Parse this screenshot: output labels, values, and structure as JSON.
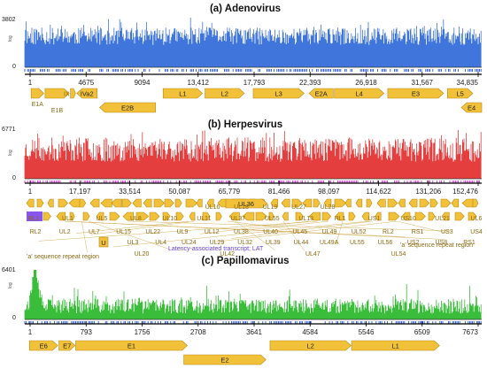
{
  "colors": {
    "adeno": "#1f5fd6",
    "herpes": "#e11d1d",
    "papilloma": "#18b218",
    "gene_fill": "#f2c13a",
    "gene_stroke": "#b88a12",
    "lat": "#8855ee"
  },
  "panels": [
    {
      "id": "adeno",
      "title": "(a) Adenovirus",
      "ymax": "3802",
      "ymin": "0",
      "ylabel": "log",
      "genome_length": 36000,
      "ticks": [
        "1",
        "4675",
        "9094",
        "13,412",
        "17,793",
        "22,393",
        "26,918",
        "31,567",
        "34,835"
      ],
      "genes": [
        {
          "name": "E1A",
          "start": 500,
          "end": 1500,
          "row": 0,
          "dir": "+",
          "label_below": true
        },
        {
          "name": "E1B",
          "start": 1600,
          "end": 3500,
          "row": 0,
          "dir": "+",
          "label_below": true
        },
        {
          "name": "IX",
          "start": 3600,
          "end": 4000,
          "row": 0,
          "dir": "+",
          "label_outside": true
        },
        {
          "name": "IVa2",
          "start": 4100,
          "end": 5700,
          "row": 0,
          "dir": "-"
        },
        {
          "name": "E2B",
          "start": 5900,
          "end": 10300,
          "row": 1,
          "dir": "-"
        },
        {
          "name": "L1",
          "start": 10900,
          "end": 14000,
          "row": 0,
          "dir": "+"
        },
        {
          "name": "L2",
          "start": 14200,
          "end": 17300,
          "row": 0,
          "dir": "+"
        },
        {
          "name": "L3",
          "start": 18000,
          "end": 22000,
          "row": 0,
          "dir": "+"
        },
        {
          "name": "E2A",
          "start": 22400,
          "end": 24300,
          "row": 0,
          "dir": "-"
        },
        {
          "name": "L4",
          "start": 24400,
          "end": 28300,
          "row": 0,
          "dir": "+"
        },
        {
          "name": "E3",
          "start": 28600,
          "end": 33000,
          "row": 0,
          "dir": "+"
        },
        {
          "name": "L5",
          "start": 33300,
          "end": 35300,
          "row": 0,
          "dir": "+"
        },
        {
          "name": "E4",
          "start": 34400,
          "end": 36000,
          "row": 1,
          "dir": "-"
        }
      ]
    },
    {
      "id": "herpes",
      "title": "(b) Herpesvirus",
      "ymax": "6771",
      "ymin": "0",
      "ylabel": "log",
      "genome_length": 155000,
      "ticks": [
        "1",
        "17,197",
        "33,514",
        "50,087",
        "65,779",
        "81,466",
        "98,097",
        "114,622",
        "131,206",
        "152,476"
      ],
      "gene_labels_top": [
        "RL1",
        "UL1",
        "UL5",
        "UL8",
        "UL10",
        "UL11",
        "UL37",
        "UL55",
        "UL13",
        "RL1",
        "US1",
        "US10",
        "UL21",
        "UL6"
      ],
      "gene_labels_inline": [
        "UL36"
      ],
      "gene_labels_bottom1": [
        "RL2",
        "UL2",
        "UL7",
        "UL15",
        "UL22",
        "UL9",
        "UL12",
        "UL38",
        "UL40",
        "UL45",
        "UL49",
        "UL52",
        "RL2",
        "RS1",
        "US3",
        "US4"
      ],
      "gene_labels_bottom2": [
        "UL3",
        "UL4",
        "UL24",
        "UL29",
        "UL32",
        "UL39",
        "UL44",
        "UL49A",
        "UL55",
        "UL56",
        "US2",
        "US8",
        "RS1"
      ],
      "gene_labels_bottom3": [
        "UL20",
        "UL42",
        "UL47",
        "UL54"
      ],
      "extra_labels": [
        "UL16",
        "UL18",
        "UL19",
        "UL27",
        "UL28"
      ],
      "repeat_left": "'a' sequence repeat region",
      "repeat_right": "'a' sequence repeat region",
      "lat_label": "Latency-associated transcript; LAT"
    },
    {
      "id": "papilloma",
      "title": "(c) Papillomavirus",
      "ymax": "6401",
      "ymin": "0",
      "ylabel": "log",
      "genome_length": 7900,
      "ticks": [
        "1",
        "793",
        "1756",
        "2708",
        "3641",
        "4584",
        "5546",
        "6509",
        "7673"
      ],
      "genes": [
        {
          "name": "E6",
          "start": 80,
          "end": 570,
          "row": 0,
          "dir": "+"
        },
        {
          "name": "E7",
          "start": 590,
          "end": 870,
          "row": 0,
          "dir": "+"
        },
        {
          "name": "E1",
          "start": 880,
          "end": 2810,
          "row": 0,
          "dir": "+"
        },
        {
          "name": "E2",
          "start": 2750,
          "end": 4170,
          "row": 1,
          "dir": "+"
        },
        {
          "name": "L2",
          "start": 4240,
          "end": 5640,
          "row": 0,
          "dir": "+"
        },
        {
          "name": "L1",
          "start": 5650,
          "end": 7170,
          "row": 0,
          "dir": "+"
        }
      ]
    }
  ]
}
